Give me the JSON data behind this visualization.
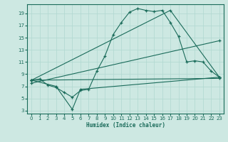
{
  "xlabel": "Humidex (Indice chaleur)",
  "bg_color": "#cde8e2",
  "line_color": "#1a6b5a",
  "grid_color": "#b0d8d0",
  "xlim": [
    -0.5,
    23.5
  ],
  "ylim": [
    2.5,
    20.5
  ],
  "xticks": [
    0,
    1,
    2,
    3,
    4,
    5,
    6,
    7,
    8,
    9,
    10,
    11,
    12,
    13,
    14,
    15,
    16,
    17,
    18,
    19,
    20,
    21,
    22,
    23
  ],
  "yticks": [
    3,
    5,
    7,
    9,
    11,
    13,
    15,
    17,
    19
  ],
  "series": [
    {
      "x": [
        0,
        1,
        2,
        3,
        4,
        5,
        6,
        7,
        8,
        9,
        10,
        11,
        12,
        13,
        14,
        15,
        16,
        17,
        18,
        19,
        20,
        21,
        22,
        23
      ],
      "y": [
        8.0,
        8.2,
        7.2,
        6.8,
        6.0,
        5.2,
        6.3,
        6.5,
        9.5,
        12.0,
        15.5,
        17.5,
        19.2,
        19.8,
        19.5,
        19.3,
        19.5,
        17.5,
        15.2,
        11.0,
        11.2,
        11.0,
        9.5,
        8.5
      ]
    },
    {
      "x": [
        0,
        3,
        5,
        6,
        23
      ],
      "y": [
        8.0,
        7.0,
        3.2,
        6.5,
        8.5
      ]
    },
    {
      "x": [
        0,
        23
      ],
      "y": [
        8.0,
        8.3
      ]
    },
    {
      "x": [
        0,
        23
      ],
      "y": [
        7.5,
        14.5
      ]
    },
    {
      "x": [
        0,
        17,
        23
      ],
      "y": [
        8.0,
        19.5,
        8.5
      ]
    }
  ]
}
